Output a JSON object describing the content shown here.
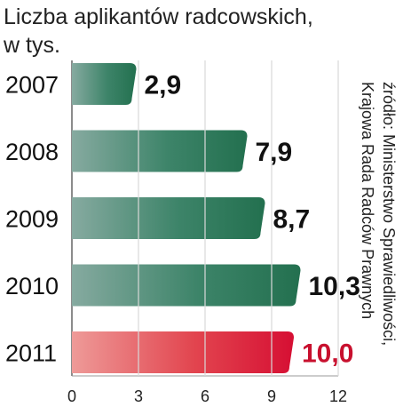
{
  "chart_data": {
    "type": "bar",
    "orientation": "horizontal",
    "title": "Liczba aplikantów radcowskich,",
    "subtitle": "w tys.",
    "categories": [
      "2007",
      "2008",
      "2009",
      "2010",
      "2011"
    ],
    "values": [
      2.9,
      7.9,
      8.7,
      10.3,
      10.0
    ],
    "value_labels": [
      "2,9",
      "7,9",
      "8,7",
      "10,3",
      "10,0"
    ],
    "xlim": [
      0,
      12
    ],
    "x_ticks": [
      "0",
      "3",
      "6",
      "9",
      "12"
    ],
    "grid": true,
    "bar_colors": [
      "#2f7a60",
      "#2f7a60",
      "#2f7a60",
      "#2f7a60",
      "#d81f3c"
    ],
    "value_label_colors": [
      "#111111",
      "#111111",
      "#111111",
      "#111111",
      "#c8102e"
    ],
    "source_line1": "źródło: Ministerstwo Sprawiedliwości,",
    "source_line2": "Krajowa Rada Radców Prawnych"
  }
}
